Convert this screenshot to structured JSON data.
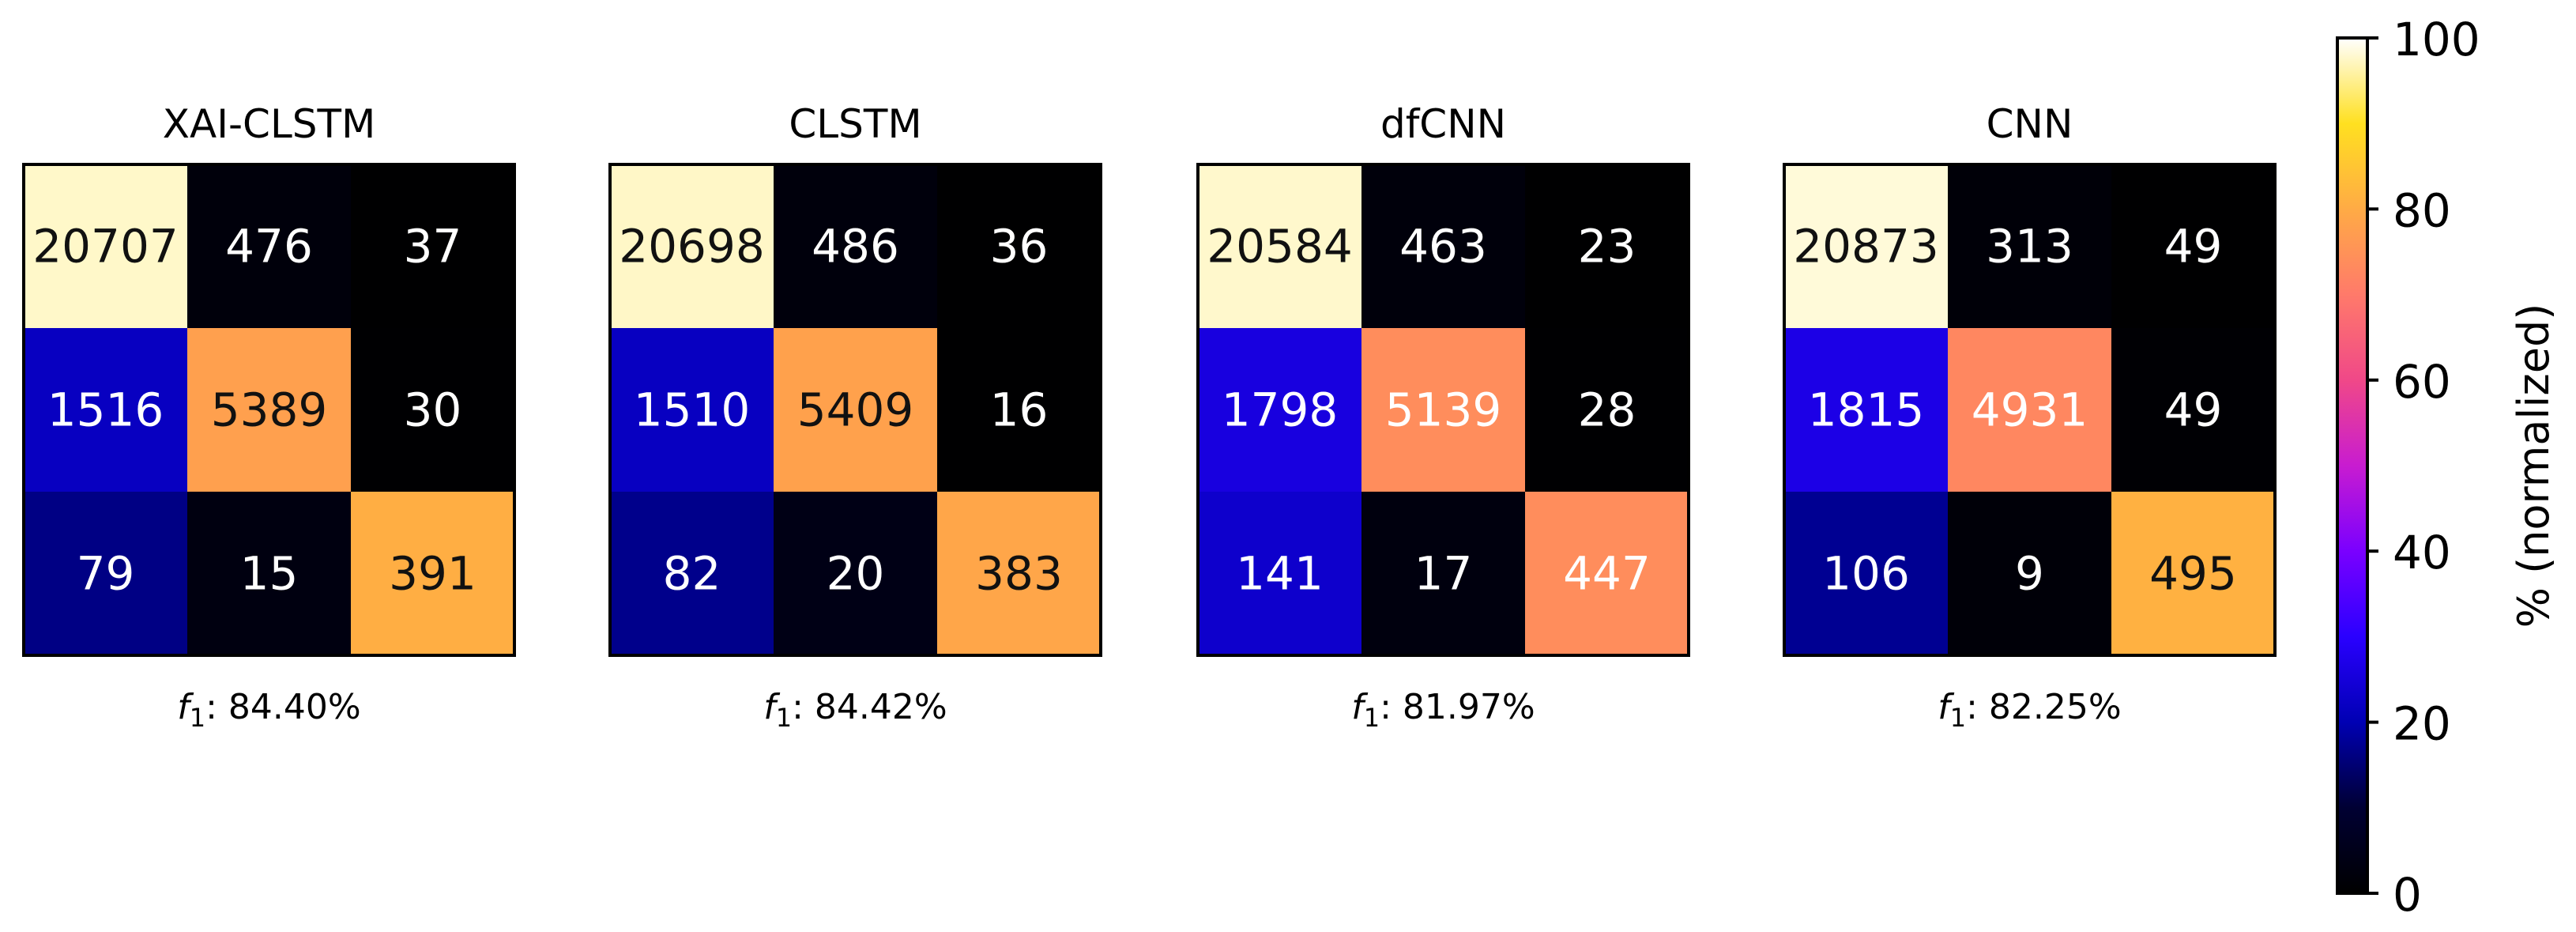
{
  "chart_data": {
    "type": "heatmap",
    "colormap": "plasma-to-white (black → blue → purple → pink → orange → yellow → white)",
    "grid": false,
    "legend": "colorbar at right",
    "colorbar": {
      "label": "% (normalized)",
      "range": [
        0,
        100
      ],
      "ticks": [
        "0",
        "20",
        "40",
        "60",
        "80",
        "100"
      ]
    },
    "metric_label": "f",
    "metric_subscript": "1",
    "panels": [
      {
        "title": "XAI-CLSTM",
        "counts": [
          [
            20707,
            476,
            37
          ],
          [
            1516,
            5389,
            30
          ],
          [
            79,
            15,
            391
          ]
        ],
        "normalized": [
          [
            97.6,
            2.2,
            0.2
          ],
          [
            21.9,
            77.7,
            0.4
          ],
          [
            16.3,
            3.1,
            80.6
          ]
        ],
        "score_text": ": 84.40%"
      },
      {
        "title": "CLSTM",
        "counts": [
          [
            20698,
            486,
            36
          ],
          [
            1510,
            5409,
            16
          ],
          [
            82,
            20,
            383
          ]
        ],
        "normalized": [
          [
            97.5,
            2.3,
            0.2
          ],
          [
            21.8,
            78.0,
            0.2
          ],
          [
            16.9,
            4.1,
            79.0
          ]
        ],
        "score_text": ": 84.42%"
      },
      {
        "title": "dfCNN",
        "counts": [
          [
            20584,
            463,
            23
          ],
          [
            1798,
            5139,
            28
          ],
          [
            141,
            17,
            447
          ]
        ],
        "normalized": [
          [
            97.7,
            2.2,
            0.1
          ],
          [
            25.8,
            73.8,
            0.4
          ],
          [
            23.3,
            2.8,
            73.9
          ]
        ],
        "score_text": ": 81.97%"
      },
      {
        "title": "CNN",
        "counts": [
          [
            20873,
            313,
            49
          ],
          [
            1815,
            4931,
            49
          ],
          [
            106,
            9,
            495
          ]
        ],
        "normalized": [
          [
            98.3,
            1.5,
            0.2
          ],
          [
            26.7,
            72.6,
            0.7
          ],
          [
            17.4,
            1.5,
            81.1
          ]
        ],
        "score_text": ": 82.25%"
      }
    ]
  }
}
